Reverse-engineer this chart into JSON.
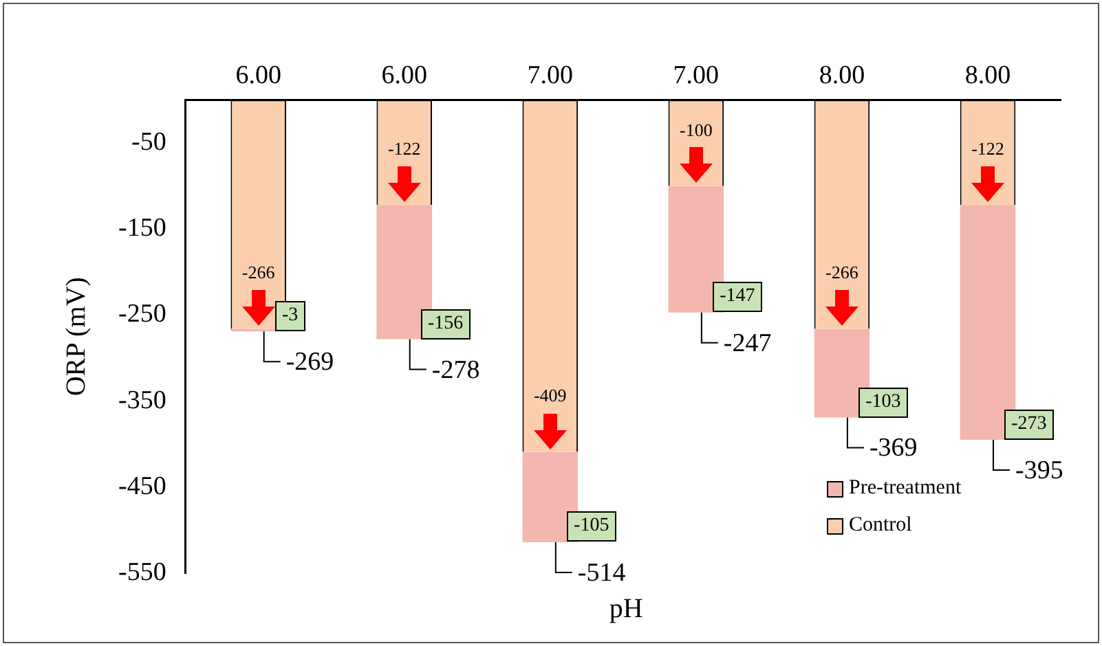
{
  "chart_data": {
    "type": "bar",
    "xlabel": "pH",
    "ylabel": "ORP (mV)",
    "categories": [
      "6.00",
      "6.00",
      "7.00",
      "7.00",
      "8.00",
      "8.00"
    ],
    "stacked": true,
    "series": [
      {
        "name": "Control",
        "color": "#fbcfae",
        "values": [
          -266,
          -122,
          -409,
          -100,
          -266,
          -122
        ],
        "value_labels": [
          "-266",
          "-122",
          "-409",
          "-100",
          "-266",
          "-122"
        ]
      },
      {
        "name": "Pre-treatment",
        "color": "#f3b7b0",
        "values": [
          -3,
          -156,
          -105,
          -147,
          -103,
          -273
        ],
        "value_labels": [
          "-3",
          "-156",
          "-105",
          "-147",
          "-103",
          "-273"
        ]
      }
    ],
    "totals": [
      "-269",
      "-278",
      "-514",
      "-247",
      "-369",
      "-395"
    ],
    "ylim": [
      -550,
      0
    ],
    "yticks": [
      -50,
      -150,
      -250,
      -350,
      -450,
      -550
    ],
    "grid": false,
    "legend": "bottom right"
  }
}
